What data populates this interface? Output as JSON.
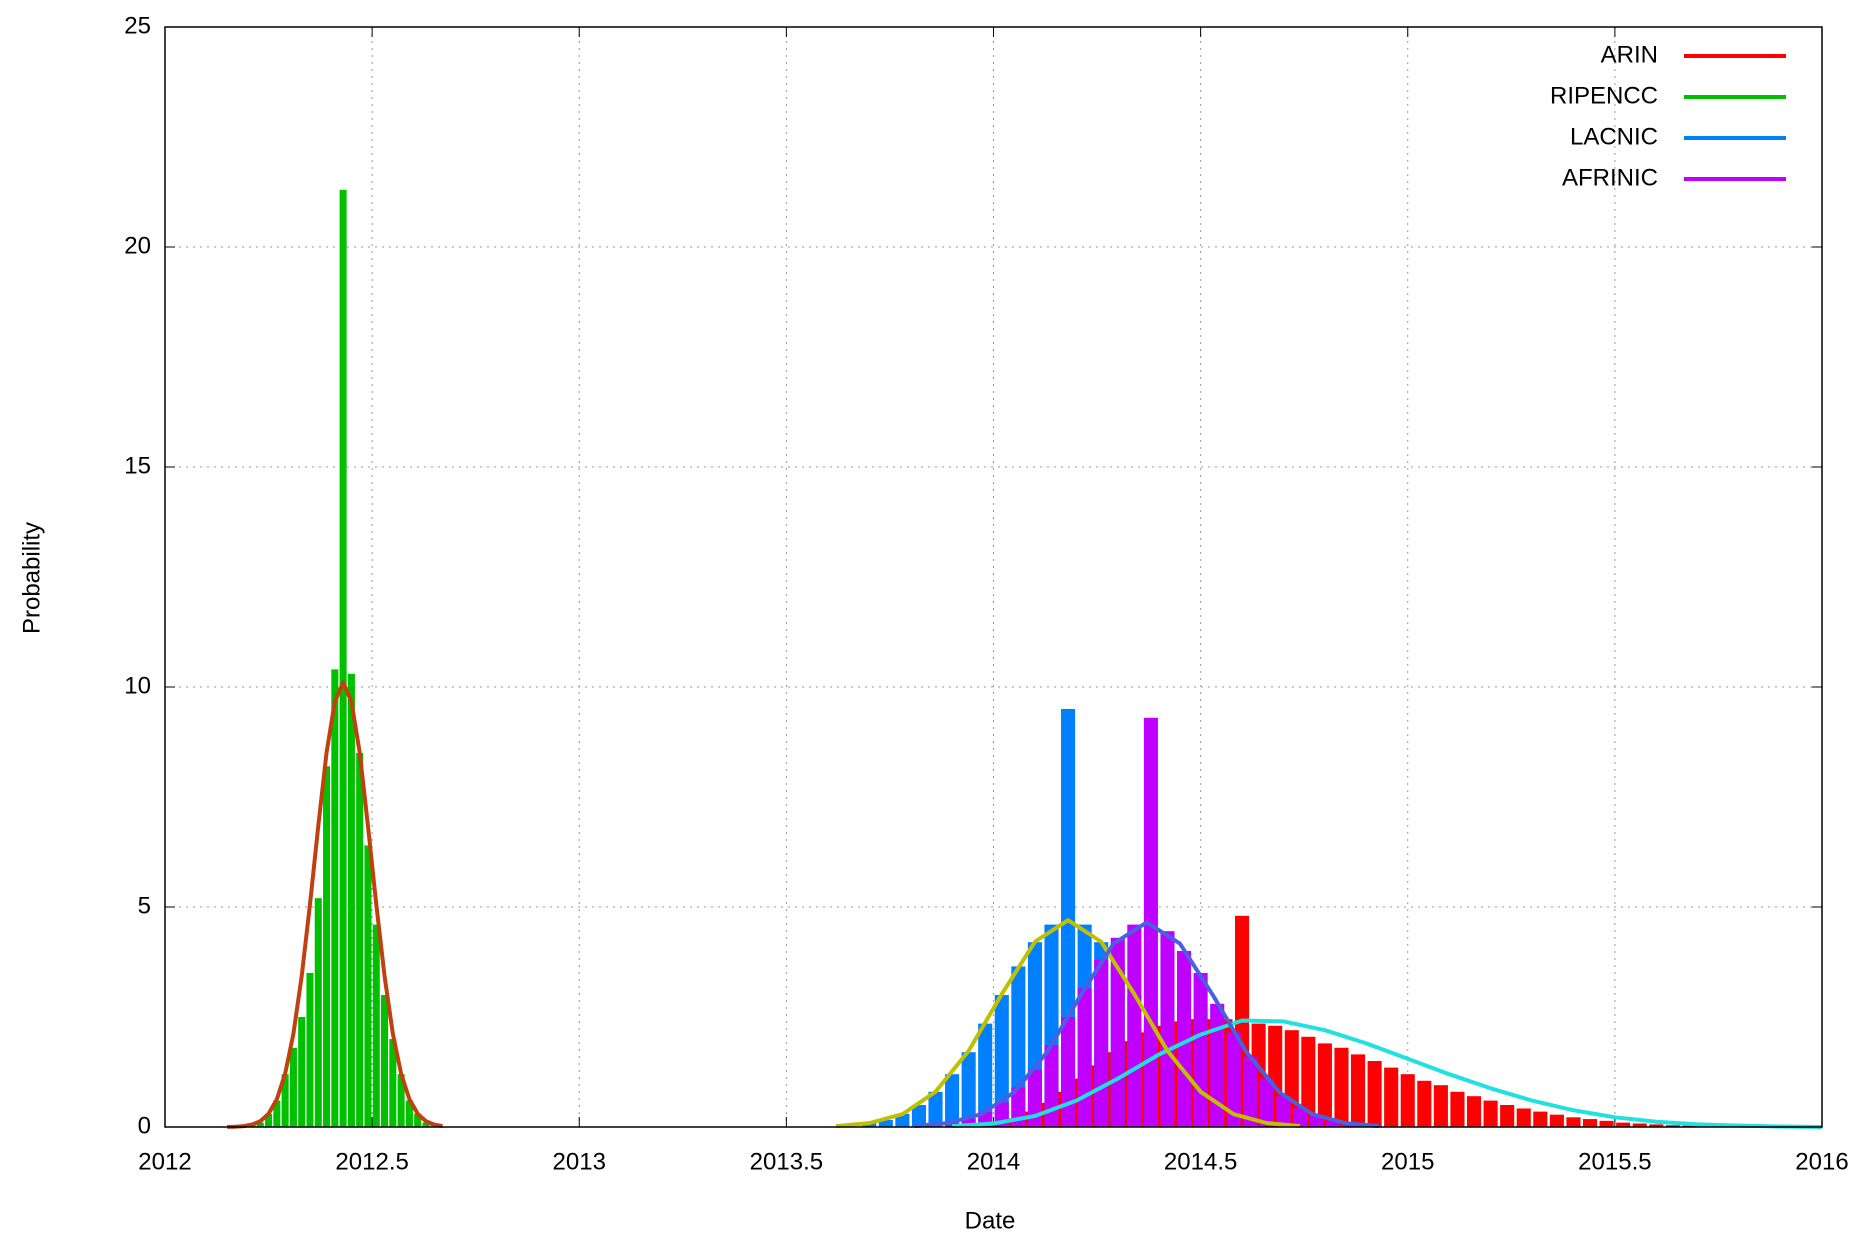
{
  "chart_data": {
    "type": "bar",
    "xlabel": "Date",
    "ylabel": "Probability",
    "xlim": [
      2012,
      2016
    ],
    "xticks": [
      2012,
      2012.5,
      2013,
      2013.5,
      2014,
      2014.5,
      2015,
      2015.5,
      2016
    ],
    "ylim": [
      0,
      25
    ],
    "yticks": [
      0,
      5,
      10,
      15,
      20,
      25
    ],
    "grid": true,
    "legend": "top-right",
    "series": [
      {
        "name": "ARIN",
        "color": "#ff0000",
        "x": [
          2014.0,
          2014.04,
          2014.08,
          2014.12,
          2014.16,
          2014.2,
          2014.24,
          2014.28,
          2014.32,
          2014.36,
          2014.4,
          2014.44,
          2014.48,
          2014.52,
          2014.56,
          2014.6,
          2014.64,
          2014.68,
          2014.72,
          2014.76,
          2014.8,
          2014.84,
          2014.88,
          2014.92,
          2014.96,
          2015.0,
          2015.04,
          2015.08,
          2015.12,
          2015.16,
          2015.2,
          2015.24,
          2015.28,
          2015.32,
          2015.36,
          2015.4,
          2015.44,
          2015.48,
          2015.52,
          2015.56,
          2015.6,
          2015.64,
          2015.68,
          2015.72,
          2015.76,
          2015.8
        ],
        "values": [
          0.1,
          0.2,
          0.35,
          0.55,
          0.8,
          1.1,
          1.4,
          1.7,
          1.95,
          2.15,
          2.3,
          2.4,
          2.45,
          2.45,
          2.45,
          4.8,
          2.35,
          2.3,
          2.2,
          2.05,
          1.9,
          1.8,
          1.65,
          1.5,
          1.35,
          1.2,
          1.05,
          0.95,
          0.8,
          0.7,
          0.6,
          0.5,
          0.42,
          0.35,
          0.28,
          0.22,
          0.18,
          0.14,
          0.1,
          0.08,
          0.06,
          0.04,
          0.03,
          0.02,
          0.01,
          0.01
        ],
        "fit": {
          "color": "#20e0e0",
          "x": [
            2013.9,
            2014.0,
            2014.1,
            2014.2,
            2014.3,
            2014.4,
            2014.5,
            2014.6,
            2014.7,
            2014.8,
            2014.9,
            2015.0,
            2015.1,
            2015.2,
            2015.3,
            2015.4,
            2015.5,
            2015.6,
            2015.7,
            2015.8,
            2015.9,
            2016.0
          ],
          "values": [
            0.02,
            0.08,
            0.25,
            0.6,
            1.1,
            1.65,
            2.1,
            2.42,
            2.4,
            2.2,
            1.9,
            1.55,
            1.2,
            0.88,
            0.6,
            0.38,
            0.22,
            0.12,
            0.06,
            0.03,
            0.01,
            0
          ]
        }
      },
      {
        "name": "RIPENCC",
        "color": "#00c000",
        "x": [
          2012.19,
          2012.21,
          2012.23,
          2012.25,
          2012.27,
          2012.29,
          2012.31,
          2012.33,
          2012.35,
          2012.37,
          2012.39,
          2012.41,
          2012.43,
          2012.45,
          2012.47,
          2012.49,
          2012.51,
          2012.53,
          2012.55,
          2012.57,
          2012.59,
          2012.61,
          2012.63,
          2012.65
        ],
        "values": [
          0.02,
          0.05,
          0.1,
          0.3,
          0.6,
          1.2,
          1.8,
          2.5,
          3.5,
          5.2,
          8.2,
          10.4,
          21.3,
          10.3,
          8.5,
          6.4,
          4.6,
          3.0,
          2.0,
          1.2,
          0.6,
          0.3,
          0.1,
          0.05
        ],
        "fit": {
          "color": "#c04010",
          "x": [
            2012.15,
            2012.17,
            2012.19,
            2012.21,
            2012.23,
            2012.25,
            2012.27,
            2012.29,
            2012.31,
            2012.33,
            2012.35,
            2012.37,
            2012.39,
            2012.41,
            2012.43,
            2012.45,
            2012.47,
            2012.49,
            2012.51,
            2012.53,
            2012.55,
            2012.57,
            2012.59,
            2012.61,
            2012.63,
            2012.65,
            2012.67
          ],
          "values": [
            0.002,
            0.007,
            0.02,
            0.054,
            0.13,
            0.3,
            0.63,
            1.21,
            2.12,
            3.43,
            5.06,
            6.84,
            8.51,
            9.67,
            10.1,
            9.67,
            8.51,
            6.84,
            5.06,
            3.43,
            2.12,
            1.21,
            0.63,
            0.3,
            0.13,
            0.054,
            0.02
          ]
        }
      },
      {
        "name": "LACNIC",
        "color": "#0080ff",
        "x": [
          2013.7,
          2013.74,
          2013.78,
          2013.82,
          2013.86,
          2013.9,
          2013.94,
          2013.98,
          2014.02,
          2014.06,
          2014.1,
          2014.14,
          2014.18,
          2014.22,
          2014.26,
          2014.3,
          2014.34,
          2014.38,
          2014.42,
          2014.46,
          2014.5
        ],
        "values": [
          0.09,
          0.16,
          0.3,
          0.5,
          0.8,
          1.2,
          1.7,
          2.35,
          3.0,
          3.65,
          4.2,
          4.6,
          9.5,
          4.6,
          4.2,
          3.65,
          3.0,
          2.35,
          1.7,
          1.2,
          0.8
        ],
        "fit": {
          "color": "#c0c000",
          "x": [
            2013.62,
            2013.7,
            2013.78,
            2013.86,
            2013.94,
            2014.02,
            2014.1,
            2014.18,
            2014.26,
            2014.34,
            2014.42,
            2014.5,
            2014.58,
            2014.66,
            2014.74
          ],
          "values": [
            0.021,
            0.088,
            0.29,
            0.8,
            1.73,
            3.02,
            4.21,
            4.7,
            4.21,
            3.02,
            1.73,
            0.8,
            0.29,
            0.088,
            0.021
          ]
        }
      },
      {
        "name": "AFRINIC",
        "color": "#c000ff",
        "x": [
          2013.9,
          2013.94,
          2013.98,
          2014.02,
          2014.06,
          2014.1,
          2014.14,
          2014.18,
          2014.22,
          2014.26,
          2014.3,
          2014.34,
          2014.38,
          2014.42,
          2014.46,
          2014.5,
          2014.54,
          2014.58,
          2014.62,
          2014.66,
          2014.7,
          2014.74,
          2014.78,
          2014.82,
          2014.86
        ],
        "values": [
          0.1,
          0.19,
          0.34,
          0.56,
          0.9,
          1.3,
          1.86,
          2.5,
          3.15,
          3.8,
          4.3,
          4.6,
          9.3,
          4.45,
          4.0,
          3.5,
          2.8,
          2.15,
          1.6,
          1.1,
          0.7,
          0.43,
          0.26,
          0.14,
          0.07
        ],
        "fit": {
          "color": "#4a60e0",
          "x": [
            2013.81,
            2013.89,
            2013.97,
            2014.05,
            2014.13,
            2014.21,
            2014.29,
            2014.37,
            2014.45,
            2014.53,
            2014.61,
            2014.69,
            2014.77,
            2014.85,
            2014.93
          ],
          "values": [
            0.021,
            0.087,
            0.29,
            0.79,
            1.71,
            2.99,
            4.17,
            4.65,
            4.17,
            2.99,
            1.71,
            0.79,
            0.29,
            0.087,
            0.021
          ]
        }
      }
    ]
  }
}
